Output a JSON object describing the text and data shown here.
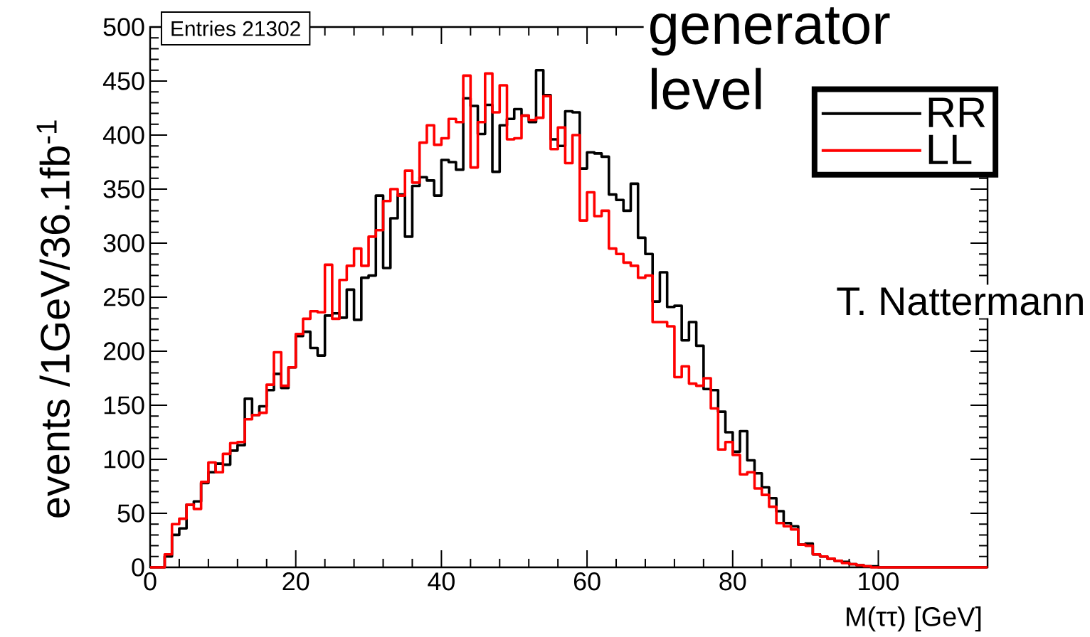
{
  "chart_data": {
    "type": "histogram",
    "xlabel": "M(ττ) [GeV]",
    "ylabel": "events /1GeV/36.1fb$^{-1}$",
    "bins": [
      0,
      1,
      2,
      3,
      4,
      5,
      6,
      7,
      8,
      9,
      10,
      11,
      12,
      13,
      14,
      15,
      16,
      17,
      18,
      19,
      20,
      21,
      22,
      23,
      24,
      25,
      26,
      27,
      28,
      29,
      30,
      31,
      32,
      33,
      34,
      35,
      36,
      37,
      38,
      39,
      40,
      41,
      42,
      43,
      44,
      45,
      46,
      47,
      48,
      49,
      50,
      51,
      52,
      53,
      54,
      55,
      56,
      57,
      58,
      59,
      60,
      61,
      62,
      63,
      64,
      65,
      66,
      67,
      68,
      69,
      70,
      71,
      72,
      73,
      74,
      75,
      76,
      77,
      78,
      79,
      80,
      81,
      82,
      83,
      84,
      85,
      86,
      87,
      88,
      89,
      90,
      91,
      92,
      93,
      94,
      95,
      96,
      97,
      98,
      99,
      100,
      101,
      102,
      103,
      104,
      105,
      106,
      107,
      108,
      109,
      110,
      111,
      112,
      113,
      114,
      115
    ],
    "series": [
      {
        "name": "RR",
        "color": "#000000",
        "values": [
          0,
          0,
          10,
          30,
          36,
          58,
          61,
          78,
          88,
          96,
          95,
          108,
          113,
          156,
          141,
          149,
          164,
          179,
          166,
          185,
          214,
          218,
          203,
          196,
          233,
          235,
          231,
          257,
          229,
          268,
          270,
          344,
          277,
          323,
          345,
          306,
          353,
          361,
          358,
          344,
          377,
          375,
          368,
          434,
          427,
          401,
          428,
          366,
          409,
          415,
          424,
          418,
          412,
          460,
          437,
          396,
          390,
          422,
          421,
          369,
          384,
          383,
          380,
          345,
          340,
          330,
          355,
          305,
          290,
          246,
          273,
          241,
          242,
          210,
          227,
          205,
          165,
          164,
          144,
          125,
          107,
          126,
          99,
          87,
          74,
          64,
          52,
          41,
          38,
          21,
          22,
          12,
          10,
          8,
          6,
          5,
          3,
          2,
          1,
          1,
          0,
          0,
          0,
          0,
          0,
          0,
          0,
          0,
          0,
          0,
          0,
          0,
          0,
          0,
          0
        ]
      },
      {
        "name": "LL",
        "color": "#ff0000",
        "values": [
          0,
          0,
          12,
          40,
          45,
          58,
          54,
          79,
          97,
          88,
          105,
          115,
          116,
          137,
          141,
          143,
          169,
          199,
          168,
          185,
          216,
          230,
          237,
          236,
          280,
          230,
          266,
          279,
          295,
          279,
          306,
          312,
          339,
          350,
          344,
          367,
          356,
          393,
          409,
          391,
          397,
          415,
          412,
          455,
          370,
          412,
          457,
          421,
          446,
          396,
          397,
          418,
          414,
          416,
          436,
          387,
          407,
          374,
          400,
          321,
          347,
          325,
          330,
          295,
          290,
          282,
          279,
          268,
          270,
          227,
          227,
          223,
          176,
          186,
          170,
          168,
          175,
          147,
          109,
          116,
          104,
          86,
          88,
          73,
          67,
          56,
          41,
          38,
          35,
          21,
          20,
          12,
          10,
          8,
          6,
          4,
          3,
          2,
          1,
          0,
          0,
          0,
          0,
          0,
          0,
          0,
          0,
          0,
          0,
          0,
          0,
          0,
          0,
          0,
          0
        ]
      }
    ],
    "xlim": [
      0,
      115
    ],
    "xticks": [
      0,
      20,
      40,
      60,
      80,
      100
    ],
    "ylim": [
      0,
      500
    ],
    "yticks": [
      0,
      50,
      100,
      150,
      200,
      250,
      300,
      350,
      400,
      450,
      500
    ],
    "legend": "top right",
    "annotations": [
      "Entries  21302",
      "generator level",
      "T. Nattermann"
    ]
  }
}
